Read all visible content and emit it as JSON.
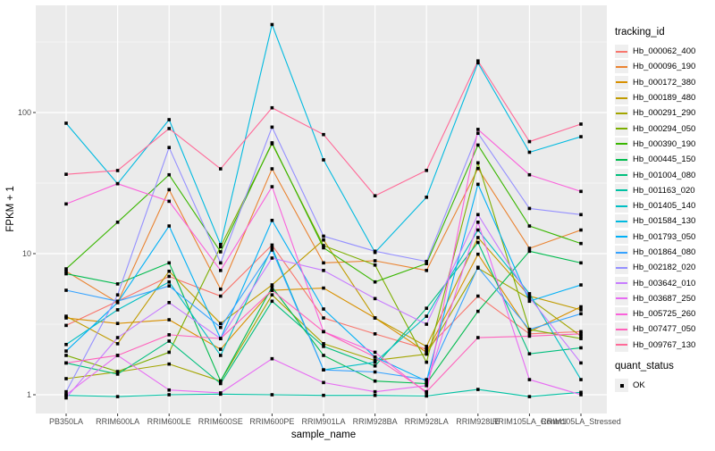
{
  "chart_data": {
    "type": "line",
    "title": "",
    "xlabel": "sample_name",
    "ylabel": "FPKM + 1",
    "x_categories": [
      "PB350LA",
      "RRIM600LA",
      "RRIM600LE",
      "RRIM600SE",
      "RRIM600PE",
      "RRIM901LA",
      "RRIM928BA",
      "RRIM928LA",
      "RRIM928LE",
      "RRIM105LA_Control",
      "RRIM105LA_Stressed"
    ],
    "y_scale": "log10",
    "y_ticks": [
      "1",
      "10",
      "100"
    ],
    "y_tick_values": [
      1,
      10,
      100
    ],
    "ylim": [
      0.9,
      580
    ],
    "grid": "white major and minor gridlines on gray panel",
    "legend_position": "right",
    "marker": "small filled black square at every data point (quant_status = OK)",
    "series": [
      {
        "name": "Hb_000062_400",
        "color": "#F8766D",
        "values": [
          3.1,
          4.6,
          6.9,
          5.0,
          11.5,
          3.5,
          2.7,
          2.1,
          5.0,
          2.7,
          2.8
        ]
      },
      {
        "name": "Hb_000096_190",
        "color": "#EA8331",
        "values": [
          7.5,
          4.5,
          28.4,
          5.6,
          39.9,
          8.6,
          8.9,
          7.6,
          40.1,
          10.9,
          14.7
        ]
      },
      {
        "name": "Hb_000172_380",
        "color": "#D89000",
        "values": [
          3.5,
          3.2,
          3.4,
          2.1,
          5.5,
          5.7,
          3.5,
          2.0,
          9.9,
          2.8,
          4.2
        ]
      },
      {
        "name": "Hb_000189_480",
        "color": "#C09B00",
        "values": [
          3.6,
          2.3,
          7.5,
          3.2,
          6.0,
          12.5,
          3.5,
          2.2,
          13.0,
          5.0,
          4.0
        ]
      },
      {
        "name": "Hb_000291_290",
        "color": "#A3A500",
        "values": [
          1.3,
          1.45,
          1.65,
          1.25,
          5.1,
          2.3,
          1.75,
          1.94,
          7.9,
          4.8,
          2.6
        ]
      },
      {
        "name": "Hb_000294_050",
        "color": "#7CAE00",
        "values": [
          1.9,
          1.46,
          2.0,
          11.2,
          60.0,
          11.4,
          8.3,
          1.7,
          44.0,
          2.9,
          2.5
        ]
      },
      {
        "name": "Hb_000390_190",
        "color": "#39B600",
        "values": [
          7.8,
          16.7,
          36.2,
          10.3,
          61.0,
          11.0,
          6.3,
          8.5,
          58.8,
          15.7,
          11.8
        ]
      },
      {
        "name": "Hb_000445_150",
        "color": "#00BB4E",
        "values": [
          7.2,
          6.1,
          8.6,
          1.25,
          5.8,
          1.9,
          1.25,
          1.2,
          3.9,
          10.4,
          8.6
        ]
      },
      {
        "name": "Hb_001004_080",
        "color": "#00BF7D",
        "values": [
          1.68,
          1.4,
          2.4,
          1.2,
          4.6,
          2.2,
          1.6,
          4.1,
          12.0,
          1.95,
          2.15
        ]
      },
      {
        "name": "Hb_001163_020",
        "color": "#00C1A3",
        "values": [
          0.99,
          0.97,
          1.0,
          1.01,
          1.0,
          0.99,
          0.99,
          0.98,
          1.09,
          0.97,
          1.04
        ]
      },
      {
        "name": "Hb_001405_140",
        "color": "#00BFC4",
        "values": [
          2.27,
          4.0,
          6.3,
          1.9,
          11.0,
          1.5,
          1.7,
          3.6,
          14.7,
          5.2,
          1.28
        ]
      },
      {
        "name": "Hb_001584_130",
        "color": "#00BAE0",
        "values": [
          84,
          31.3,
          89,
          11.6,
          420,
          46.2,
          10.2,
          25.1,
          225,
          52.3,
          67.4
        ]
      },
      {
        "name": "Hb_001793_050",
        "color": "#00B0F6",
        "values": [
          2.04,
          4.5,
          15.7,
          2.5,
          17.2,
          4.05,
          1.85,
          1.25,
          31.0,
          4.6,
          6.0
        ]
      },
      {
        "name": "Hb_001864_080",
        "color": "#35A2FF",
        "values": [
          5.5,
          4.6,
          5.9,
          3.0,
          10.6,
          1.5,
          1.45,
          1.28,
          8.0,
          2.9,
          3.75
        ]
      },
      {
        "name": "Hb_002182_020",
        "color": "#9590FF",
        "values": [
          1.05,
          5.1,
          56.5,
          8.6,
          78.8,
          13.3,
          10.4,
          8.8,
          71.3,
          20.9,
          18.9
        ]
      },
      {
        "name": "Hb_003642_010",
        "color": "#C77CFF",
        "values": [
          0.95,
          2.54,
          4.5,
          2.5,
          9.3,
          7.6,
          4.8,
          3.16,
          18.9,
          4.9,
          1.68
        ]
      },
      {
        "name": "Hb_003687_250",
        "color": "#E76BF3",
        "values": [
          1.0,
          1.9,
          1.08,
          1.03,
          1.8,
          1.22,
          1.05,
          1.16,
          16.7,
          1.28,
          1.0
        ]
      },
      {
        "name": "Hb_005725_260",
        "color": "#FA62DB",
        "values": [
          22.5,
          31.3,
          23.5,
          7.6,
          29.8,
          2.8,
          2.0,
          1.03,
          75.9,
          36.2,
          27.6
        ]
      },
      {
        "name": "Hb_007477_050",
        "color": "#FF62BC",
        "values": [
          1.68,
          1.9,
          2.66,
          2.5,
          5.5,
          2.8,
          1.85,
          1.05,
          2.54,
          2.6,
          2.7
        ]
      },
      {
        "name": "Hb_009767_130",
        "color": "#FF6A98",
        "values": [
          36.5,
          38.8,
          77.0,
          39.9,
          108.0,
          69.8,
          25.7,
          38.9,
          232.0,
          62.2,
          82.8
        ]
      }
    ]
  },
  "legend": {
    "tracking_title": "tracking_id",
    "quant_title": "quant_status",
    "quant_items": [
      {
        "label": "OK"
      }
    ]
  },
  "colors": {
    "panel_bg": "#EBEBEB",
    "grid": "#FFFFFF",
    "marker": "#000000",
    "tick_text": "#4D4D4D",
    "legend_key_bg": "#EFEFEF"
  }
}
